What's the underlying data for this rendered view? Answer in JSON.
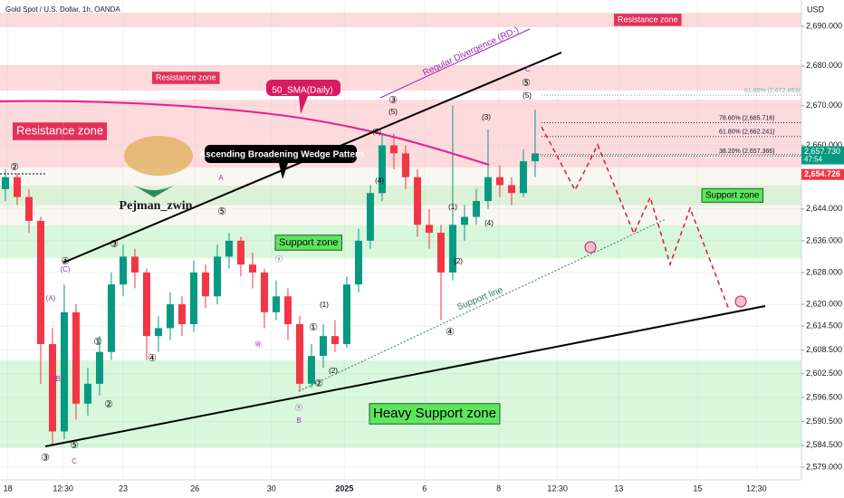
{
  "chart_data": {
    "type": "candlestick",
    "title": "Gold Spot / U.S. Dollar, 1h, OANDA",
    "currency": "USD",
    "up_color": "#089981",
    "down_color": "#f23645",
    "candles": [
      [
        2649,
        2654,
        2646,
        2652
      ],
      [
        2652,
        2653,
        2645,
        2647
      ],
      [
        2647,
        2649,
        2638,
        2641
      ],
      [
        2641,
        2642,
        2600,
        2610
      ],
      [
        2610,
        2614,
        2584.5,
        2588
      ],
      [
        2588,
        2625,
        2586,
        2618
      ],
      [
        2618,
        2620,
        2591,
        2595
      ],
      [
        2595,
        2604,
        2592,
        2600
      ],
      [
        2600,
        2612,
        2597,
        2608
      ],
      [
        2608,
        2628,
        2606,
        2625
      ],
      [
        2625,
        2635,
        2622,
        2632
      ],
      [
        2632,
        2634,
        2624,
        2628
      ],
      [
        2628,
        2629,
        2606,
        2612
      ],
      [
        2612,
        2617,
        2608,
        2614
      ],
      [
        2614,
        2623,
        2611,
        2620
      ],
      [
        2620,
        2622,
        2612,
        2615
      ],
      [
        2615,
        2631,
        2613,
        2628
      ],
      [
        2628,
        2630,
        2619,
        2622
      ],
      [
        2622,
        2635,
        2620,
        2632
      ],
      [
        2632,
        2638,
        2629,
        2636
      ],
      [
        2636,
        2637,
        2627,
        2630
      ],
      [
        2630,
        2633,
        2624,
        2628
      ],
      [
        2628,
        2629,
        2614,
        2618
      ],
      [
        2618,
        2626,
        2616,
        2622
      ],
      [
        2622,
        2624,
        2611,
        2615
      ],
      [
        2615,
        2617,
        2598,
        2600
      ],
      [
        2600,
        2610,
        2599,
        2607
      ],
      [
        2607,
        2615,
        2604,
        2612
      ],
      [
        2612,
        2616,
        2608,
        2610
      ],
      [
        2610,
        2627,
        2609,
        2625
      ],
      [
        2625,
        2639,
        2623,
        2636
      ],
      [
        2636,
        2650,
        2634,
        2648
      ],
      [
        2648,
        2663,
        2646,
        2660
      ],
      [
        2660,
        2663,
        2654,
        2658
      ],
      [
        2658,
        2660,
        2649,
        2652
      ],
      [
        2652,
        2654,
        2637,
        2640
      ],
      [
        2640,
        2644,
        2634,
        2638
      ],
      [
        2638,
        2640,
        2616,
        2628
      ],
      [
        2628,
        2670,
        2626,
        2640
      ],
      [
        2640,
        2645,
        2636,
        2642
      ],
      [
        2642,
        2649,
        2640,
        2646
      ],
      [
        2646,
        2664,
        2644,
        2652
      ],
      [
        2652,
        2655,
        2647,
        2650
      ],
      [
        2650,
        2652,
        2645,
        2648
      ],
      [
        2648,
        2659,
        2647,
        2656
      ],
      [
        2656,
        2669,
        2652,
        2658
      ]
    ],
    "xlim": [
      -0.46,
      67.62
    ],
    "xticks": [
      {
        "value": 0.2,
        "label": "18"
      },
      {
        "value": 4.9,
        "label": "12:30"
      },
      {
        "value": 10,
        "label": "23"
      },
      {
        "value": 16.1,
        "label": "26"
      },
      {
        "value": 22.6,
        "label": "30"
      },
      {
        "value": 28.8,
        "label": "2025"
      },
      {
        "value": 35.6,
        "label": "6"
      },
      {
        "value": 41.9,
        "label": "8"
      },
      {
        "value": 46.9,
        "label": "12:30"
      },
      {
        "value": 52.1,
        "label": "13"
      },
      {
        "value": 58.8,
        "label": "15"
      },
      {
        "value": 63.8,
        "label": "12:30"
      }
    ],
    "ylim": [
      2575.8,
      2696.6
    ],
    "yticks": [
      {
        "value": 2690,
        "label": "2,690.000"
      },
      {
        "value": 2680,
        "label": "2,680.000"
      },
      {
        "value": 2670,
        "label": "2,670.000"
      },
      {
        "value": 2660,
        "label": "2,660.000"
      },
      {
        "value": 2644,
        "label": "2,644.000"
      },
      {
        "value": 2636,
        "label": "2,636.000"
      },
      {
        "value": 2628,
        "label": "2,628.000"
      },
      {
        "value": 2620,
        "label": "2,620.000"
      },
      {
        "value": 2614.5,
        "label": "2,614.500"
      },
      {
        "value": 2608.5,
        "label": "2,608.500"
      },
      {
        "value": 2602.5,
        "label": "2,602.500"
      },
      {
        "value": 2596.5,
        "label": "2,596.500"
      },
      {
        "value": 2590.5,
        "label": "2,590.500"
      },
      {
        "value": 2584.5,
        "label": "2,584.500"
      },
      {
        "value": 2579,
        "label": "2,579.000"
      }
    ],
    "price_last": {
      "value": 2657.73,
      "label": "2,657.730",
      "countdown": "47:54"
    },
    "price_prev": {
      "value": 2654.726,
      "label": "2,654.726"
    },
    "zones": [
      {
        "label": "Resistance zone",
        "range": [
          2689.8,
          2693.4
        ],
        "kind": "resistance"
      },
      {
        "label": "Resistance zone",
        "range": [
          2673.8,
          2680.2
        ],
        "kind": "resistance"
      },
      {
        "label": "Resistance zone",
        "range": [
          2654.4,
          2671.5
        ],
        "kind": "resistance"
      },
      {
        "label": "Support zone",
        "range": [
          2644.9,
          2649.9
        ],
        "kind": "support"
      },
      {
        "label": "Support zone",
        "range": [
          2631.6,
          2639.9
        ],
        "kind": "support"
      },
      {
        "label": "Heavy Support zone",
        "range": [
          2583.8,
          2605.9
        ],
        "kind": "support"
      }
    ],
    "fib_levels": [
      {
        "value": 2672.653,
        "label": "61.80% (2,672.653)"
      },
      {
        "value": 2665.716,
        "label": "78.60% (2,665.716)"
      },
      {
        "value": 2662.241,
        "label": "61.80% (2,662.241)"
      },
      {
        "value": 2657.366,
        "label": "38.20% (2,657.366)"
      }
    ],
    "annotations": [
      "50_SMA(Daily)",
      "Ascending Broadening Wedge Pattern",
      "Regular Divergence (RD-)",
      "Support line",
      "Pejman_zwin"
    ],
    "wave_labels": [
      "②",
      "④",
      "(C)",
      "(A)",
      "(B)",
      "③",
      "⑤",
      "C",
      "①",
      "②",
      "③",
      "④",
      "Ⓦ",
      "ⓧ",
      "①",
      "②",
      "Ⓨ",
      "B",
      "A",
      "⑤",
      "(1)",
      "(2)",
      "(3)",
      "(4)",
      "③",
      "(5)",
      "(1)",
      "(2)",
      "(3)",
      "(4)",
      "④",
      "⑤",
      "C",
      "(5)"
    ]
  }
}
